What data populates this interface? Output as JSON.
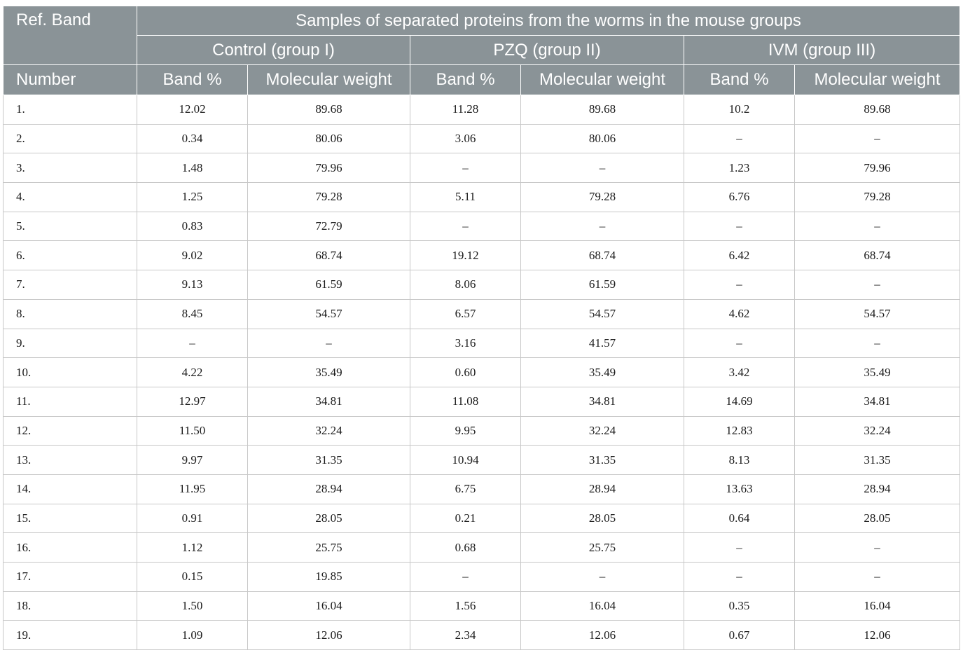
{
  "header": {
    "ref_band": "Ref. Band",
    "number": "Number",
    "samples_title": "Samples of separated proteins from the worms in the mouse groups",
    "groups": [
      "Control (group I)",
      "PZQ (group II)",
      "IVM (group III)"
    ],
    "band_pct": "Band %",
    "mol_weight": "Molecular weight"
  },
  "rows": [
    [
      "1.",
      "12.02",
      "89.68",
      "11.28",
      "89.68",
      "10.2",
      "89.68"
    ],
    [
      "2.",
      "0.34",
      "80.06",
      "3.06",
      "80.06",
      "–",
      "–"
    ],
    [
      "3.",
      "1.48",
      "79.96",
      "–",
      "–",
      "1.23",
      "79.96"
    ],
    [
      "4.",
      "1.25",
      "79.28",
      "5.11",
      "79.28",
      "6.76",
      "79.28"
    ],
    [
      "5.",
      "0.83",
      "72.79",
      "–",
      "–",
      "–",
      "–"
    ],
    [
      "6.",
      "9.02",
      "68.74",
      "19.12",
      "68.74",
      "6.42",
      "68.74"
    ],
    [
      "7.",
      "9.13",
      "61.59",
      "8.06",
      "61.59",
      "–",
      "–"
    ],
    [
      "8.",
      "8.45",
      "54.57",
      "6.57",
      "54.57",
      "4.62",
      "54.57"
    ],
    [
      "9.",
      "–",
      "–",
      "3.16",
      "41.57",
      "–",
      "–"
    ],
    [
      "10.",
      "4.22",
      "35.49",
      "0.60",
      "35.49",
      "3.42",
      "35.49"
    ],
    [
      "11.",
      "12.97",
      "34.81",
      "11.08",
      "34.81",
      "14.69",
      "34.81"
    ],
    [
      "12.",
      "11.50",
      "32.24",
      "9.95",
      "32.24",
      "12.83",
      "32.24"
    ],
    [
      "13.",
      "9.97",
      "31.35",
      "10.94",
      "31.35",
      "8.13",
      "31.35"
    ],
    [
      "14.",
      "11.95",
      "28.94",
      "6.75",
      "28.94",
      "13.63",
      "28.94"
    ],
    [
      "15.",
      "0.91",
      "28.05",
      "0.21",
      "28.05",
      "0.64",
      "28.05"
    ],
    [
      "16.",
      "1.12",
      "25.75",
      "0.68",
      "25.75",
      "–",
      "–"
    ],
    [
      "17.",
      "0.15",
      "19.85",
      "–",
      "–",
      "–",
      "–"
    ],
    [
      "18.",
      "1.50",
      "16.04",
      "1.56",
      "16.04",
      "0.35",
      "16.04"
    ],
    [
      "19.",
      "1.09",
      "12.06",
      "2.34",
      "12.06",
      "0.67",
      "12.06"
    ]
  ]
}
